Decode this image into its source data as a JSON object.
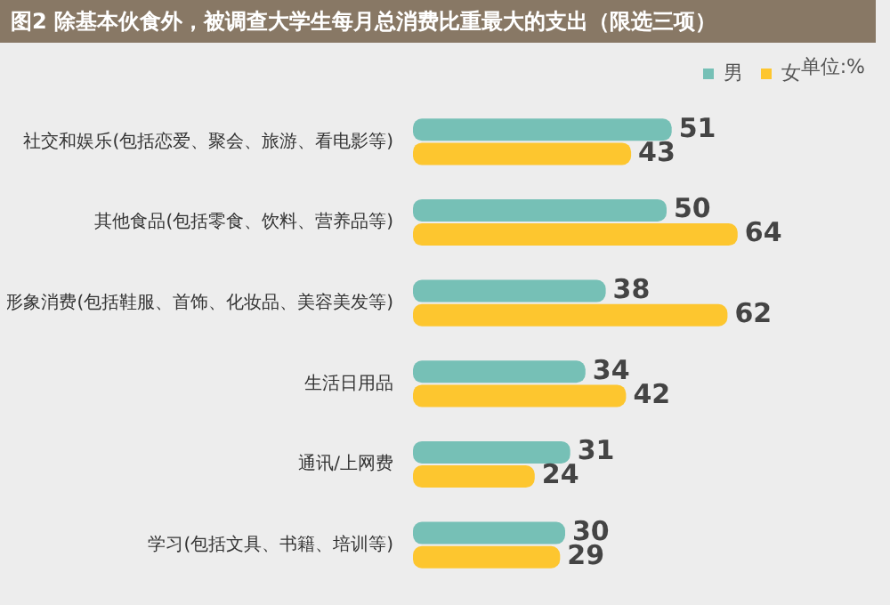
{
  "chart_data": {
    "type": "bar",
    "orientation": "horizontal",
    "title": "图2  除基本伙食外，被调查大学生每月总消费比重最大的支出（限选三项）",
    "categories": [
      "社交和娱乐(包括恋爱、聚会、旅游、看电影等)",
      "其他食品(包括零食、饮料、营养品等)",
      "形象消费(包括鞋服、首饰、化妆品、美容美发等)",
      "生活日用品",
      "通讯/上网费",
      "学习(包括文具、书籍、培训等)"
    ],
    "series": [
      {
        "name": "男",
        "color": "#76c0b6",
        "values": [
          51,
          50,
          38,
          34,
          31,
          30
        ]
      },
      {
        "name": "女",
        "color": "#fdc62f",
        "values": [
          43,
          64,
          62,
          42,
          24,
          29
        ]
      }
    ],
    "data_labels": true,
    "legend": "top right",
    "annotations": [
      "单位:%"
    ]
  }
}
